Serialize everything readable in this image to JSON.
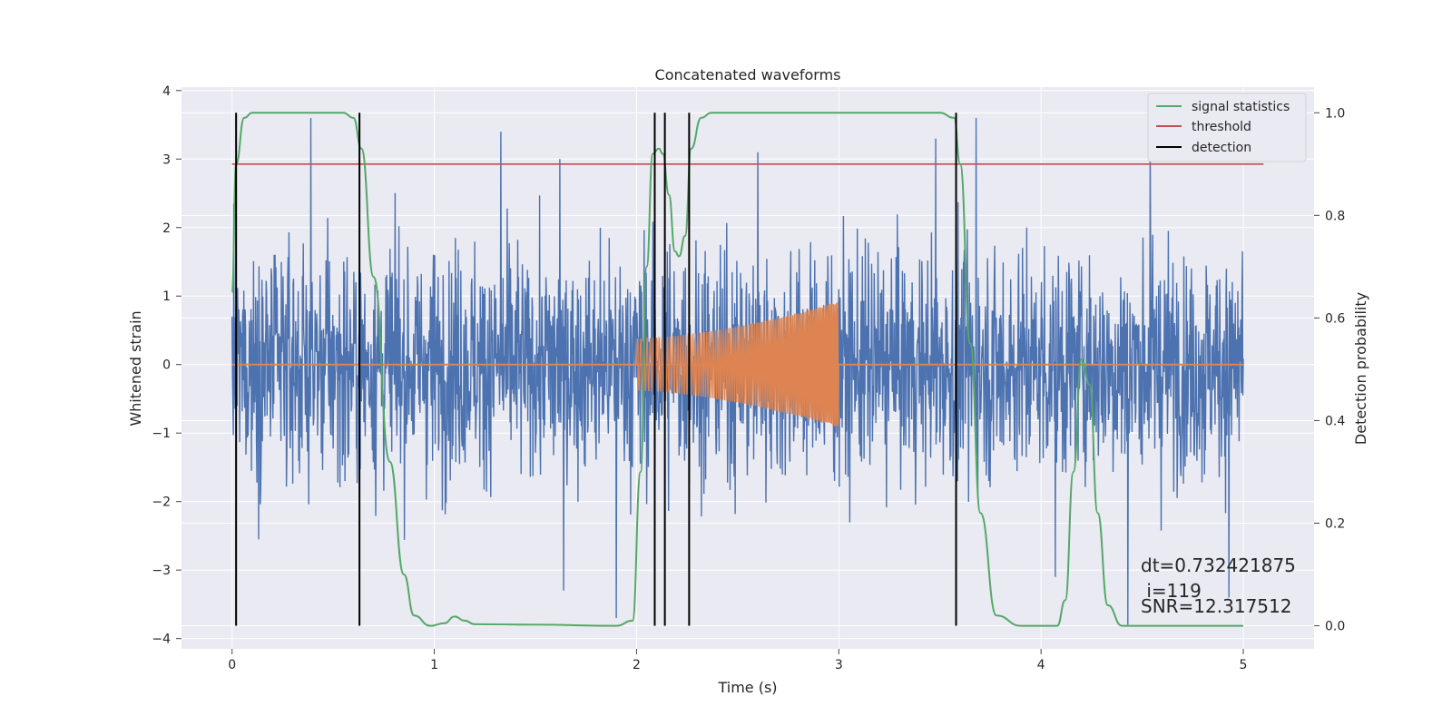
{
  "chart_data": {
    "type": "line",
    "title": "Concatenated waveforms",
    "xlabel": "Time (s)",
    "ylabel": "Whitened strain",
    "ylabel_right": "Detection probability",
    "xlim": [
      -0.25,
      5.35
    ],
    "ylim": [
      -4.15,
      4.05
    ],
    "ylim_right": [
      -0.045,
      1.05
    ],
    "xticks": [
      "0",
      "1",
      "2",
      "3",
      "4",
      "5"
    ],
    "yticks": [
      "4",
      "3",
      "2",
      "1",
      "0",
      "−1",
      "−2",
      "−3",
      "−4"
    ],
    "yticks_right": [
      "1.0",
      "0.8",
      "0.6",
      "0.4",
      "0.2",
      "0.0"
    ],
    "grid": true,
    "legend_position": "top-right",
    "legend": [
      "signal statistics",
      "threshold",
      "detection"
    ],
    "colors": {
      "plot_background": "#eaeaf2",
      "grid": "#ffffff",
      "strain": "#4c72b0",
      "injected_signal": "#dd8452",
      "signal_statistics": "#55a868",
      "threshold": "#c44e52",
      "detection": "#000000"
    },
    "series": [
      {
        "kind": "noise",
        "axis": "left",
        "x_range": [
          0,
          5
        ],
        "typical_amplitude_range": [
          -2.6,
          2.6
        ],
        "peaks": [
          {
            "x": 0.39,
            "y": 3.6
          },
          {
            "x": 1.33,
            "y": 3.4
          },
          {
            "x": 1.62,
            "y": 3.0
          },
          {
            "x": 1.64,
            "y": -3.3
          },
          {
            "x": 1.9,
            "y": -3.7
          },
          {
            "x": 2.6,
            "y": 3.1
          },
          {
            "x": 3.48,
            "y": 3.3
          },
          {
            "x": 3.68,
            "y": 3.6
          },
          {
            "x": 4.07,
            "y": -3.1
          },
          {
            "x": 4.43,
            "y": -3.8
          },
          {
            "x": 4.54,
            "y": 3.3
          },
          {
            "x": 4.93,
            "y": -3.4
          }
        ]
      },
      {
        "kind": "chirp",
        "axis": "left",
        "x_range": [
          2,
          3
        ],
        "amplitude_start": 0.38,
        "amplitude_end": 0.92,
        "baseline": 0
      },
      {
        "name": "signal statistics",
        "axis": "right",
        "x": [
          0,
          0.02,
          0.06,
          0.1,
          0.55,
          0.6,
          0.64,
          0.7,
          0.78,
          0.85,
          0.9,
          0.98,
          1.05,
          1.1,
          1.15,
          1.2,
          1.5,
          1.9,
          1.98,
          2.02,
          2.05,
          2.08,
          2.11,
          2.13,
          2.16,
          2.19,
          2.21,
          2.24,
          2.27,
          2.32,
          2.37,
          2.5,
          3.5,
          3.57,
          3.6,
          3.65,
          3.7,
          3.78,
          3.9,
          4.08,
          4.12,
          4.16,
          4.2,
          4.24,
          4.28,
          4.33,
          4.4,
          5.0
        ],
        "values": [
          0.65,
          0.9,
          0.99,
          1.0,
          1.0,
          0.99,
          0.93,
          0.68,
          0.32,
          0.1,
          0.02,
          0.0,
          0.005,
          0.018,
          0.01,
          0.003,
          0.002,
          0.0,
          0.01,
          0.3,
          0.7,
          0.92,
          0.93,
          0.92,
          0.84,
          0.73,
          0.72,
          0.76,
          0.93,
          0.99,
          1.0,
          1.0,
          1.0,
          0.99,
          0.9,
          0.55,
          0.22,
          0.02,
          0.0,
          0.0,
          0.05,
          0.3,
          0.52,
          0.47,
          0.22,
          0.04,
          0.0,
          0.0
        ]
      },
      {
        "name": "threshold",
        "axis": "right",
        "x": [
          0,
          5.1
        ],
        "values": [
          0.9,
          0.9
        ]
      }
    ],
    "detections": {
      "name": "detection",
      "x": [
        0.02,
        0.63,
        2.09,
        2.14,
        2.26,
        3.58
      ],
      "y_range": [
        0.0,
        1.0
      ]
    },
    "annotations": {
      "dt": "dt=0.732421875",
      "i": " i=119",
      "snr": "SNR=12.317512"
    }
  }
}
